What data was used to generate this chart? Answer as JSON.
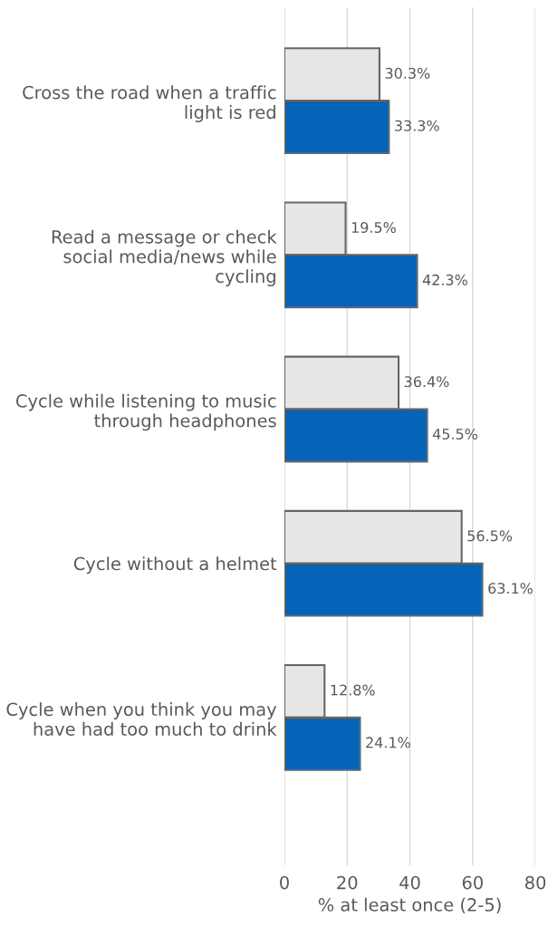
{
  "chart_data": {
    "type": "bar",
    "orientation": "horizontal",
    "categories": [
      "Cross the road when a traffic light is red",
      "Read a message or check social media/news while cycling",
      "Cycle while listening to music through headphones",
      "Cycle without a helmet",
      "Cycle when you think you may have had too much to drink"
    ],
    "series": [
      {
        "color": "#e6e6e6",
        "values": [
          30.3,
          19.5,
          36.4,
          56.5,
          12.8
        ],
        "value_labels": [
          "30.3%",
          "19.5%",
          "36.4%",
          "56.5%",
          "12.8%"
        ]
      },
      {
        "color": "#0563b8",
        "values": [
          33.3,
          42.3,
          45.5,
          63.1,
          24.1
        ],
        "value_labels": [
          "33.3%",
          "42.3%",
          "45.5%",
          "63.1%",
          "24.1%"
        ]
      }
    ],
    "xlim": [
      0,
      80
    ],
    "xticks": [
      0,
      20,
      40,
      60,
      80
    ],
    "xlabel": "% at least once (2-5)",
    "grid": "x",
    "legend": false
  }
}
